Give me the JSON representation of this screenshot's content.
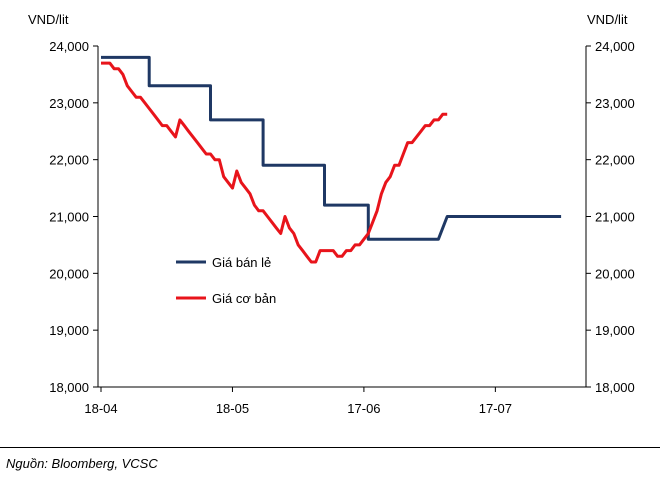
{
  "chart_data": {
    "type": "line",
    "ylabel_left": "VND/lit",
    "ylabel_right": "VND/lit",
    "ylim": [
      18000,
      24000
    ],
    "y_ticks": [
      "24,000",
      "23,000",
      "22,000",
      "21,000",
      "20,000",
      "19,000",
      "18,000"
    ],
    "x_ticks": [
      "18-04",
      "18-05",
      "17-06",
      "17-07"
    ],
    "grid": false,
    "legend_position": "center-left",
    "series": [
      {
        "name": "Giá bán lẻ",
        "color": "#1f3864",
        "points": [
          [
            0,
            23800
          ],
          [
            11,
            23800
          ],
          [
            11,
            23300
          ],
          [
            25,
            23300
          ],
          [
            25,
            22700
          ],
          [
            37,
            22700
          ],
          [
            37,
            21900
          ],
          [
            51,
            21900
          ],
          [
            51,
            21200
          ],
          [
            61,
            21200
          ],
          [
            61,
            20600
          ],
          [
            77,
            20600
          ],
          [
            79,
            21000
          ],
          [
            105,
            21000
          ]
        ]
      },
      {
        "name": "Giá cơ bản",
        "color": "#e8141b",
        "points": [
          [
            0,
            23700
          ],
          [
            2,
            23700
          ],
          [
            3,
            23600
          ],
          [
            4,
            23600
          ],
          [
            5,
            23500
          ],
          [
            6,
            23300
          ],
          [
            7,
            23200
          ],
          [
            8,
            23100
          ],
          [
            9,
            23100
          ],
          [
            10,
            23000
          ],
          [
            11,
            22900
          ],
          [
            12,
            22800
          ],
          [
            13,
            22700
          ],
          [
            14,
            22600
          ],
          [
            15,
            22600
          ],
          [
            16,
            22500
          ],
          [
            17,
            22400
          ],
          [
            18,
            22700
          ],
          [
            19,
            22600
          ],
          [
            20,
            22500
          ],
          [
            21,
            22400
          ],
          [
            22,
            22300
          ],
          [
            23,
            22200
          ],
          [
            24,
            22100
          ],
          [
            25,
            22100
          ],
          [
            26,
            22000
          ],
          [
            27,
            22000
          ],
          [
            28,
            21700
          ],
          [
            29,
            21600
          ],
          [
            30,
            21500
          ],
          [
            31,
            21800
          ],
          [
            32,
            21600
          ],
          [
            33,
            21500
          ],
          [
            34,
            21400
          ],
          [
            35,
            21200
          ],
          [
            36,
            21100
          ],
          [
            37,
            21100
          ],
          [
            38,
            21000
          ],
          [
            39,
            20900
          ],
          [
            40,
            20800
          ],
          [
            41,
            20700
          ],
          [
            42,
            21000
          ],
          [
            43,
            20800
          ],
          [
            44,
            20700
          ],
          [
            45,
            20500
          ],
          [
            46,
            20400
          ],
          [
            47,
            20300
          ],
          [
            48,
            20200
          ],
          [
            49,
            20200
          ],
          [
            50,
            20400
          ],
          [
            51,
            20400
          ],
          [
            52,
            20400
          ],
          [
            53,
            20400
          ],
          [
            54,
            20300
          ],
          [
            55,
            20300
          ],
          [
            56,
            20400
          ],
          [
            57,
            20400
          ],
          [
            58,
            20500
          ],
          [
            59,
            20500
          ],
          [
            60,
            20600
          ],
          [
            61,
            20700
          ],
          [
            62,
            20900
          ],
          [
            63,
            21100
          ],
          [
            64,
            21400
          ],
          [
            65,
            21600
          ],
          [
            66,
            21700
          ],
          [
            67,
            21900
          ],
          [
            68,
            21900
          ],
          [
            69,
            22100
          ],
          [
            70,
            22300
          ],
          [
            71,
            22300
          ],
          [
            72,
            22400
          ],
          [
            73,
            22500
          ],
          [
            74,
            22600
          ],
          [
            75,
            22600
          ],
          [
            76,
            22700
          ],
          [
            77,
            22700
          ],
          [
            78,
            22800
          ],
          [
            79,
            22800
          ]
        ]
      }
    ]
  },
  "source": "Nguồn: Bloomberg, VCSC"
}
